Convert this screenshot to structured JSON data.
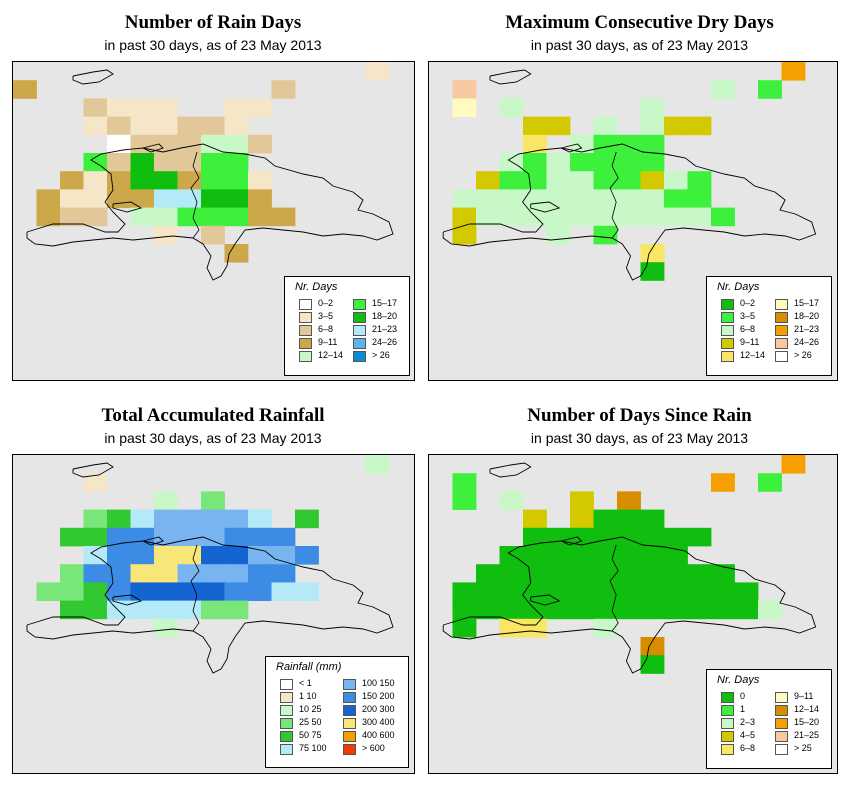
{
  "panels": [
    {
      "id": "rain-days",
      "title": "Number of Rain Days",
      "subtitle": "in past 30 days, as of  23 May 2013",
      "legend_title": "Nr. Days",
      "legend": [
        {
          "label": "0–2",
          "color": "#ffffff"
        },
        {
          "label": "3–5",
          "color": "#f5e6c8"
        },
        {
          "label": "6–8",
          "color": "#e2c898"
        },
        {
          "label": "9–11",
          "color": "#cda84a"
        },
        {
          "label": "12–14",
          "color": "#c8f7c8"
        },
        {
          "label": "15–17",
          "color": "#3cf03c"
        },
        {
          "label": "18–20",
          "color": "#0fbe0f"
        },
        {
          "label": "21–23",
          "color": "#b4eaf8"
        },
        {
          "label": "24–26",
          "color": "#5ab4f0"
        },
        {
          "label": "> 26",
          "color": "#0a8cd2"
        }
      ]
    },
    {
      "id": "dry-days",
      "title": "Maximum Consecutive Dry Days",
      "subtitle": "in past 30 days, as of  23 May 2013",
      "legend_title": "Nr. Days",
      "legend": [
        {
          "label": "0–2",
          "color": "#0fbe0f"
        },
        {
          "label": "3–5",
          "color": "#3cf03c"
        },
        {
          "label": "6–8",
          "color": "#c8f7c8"
        },
        {
          "label": "9–11",
          "color": "#d4c800"
        },
        {
          "label": "12–14",
          "color": "#f8e664"
        },
        {
          "label": "15–17",
          "color": "#fffac0"
        },
        {
          "label": "18–20",
          "color": "#d88c00"
        },
        {
          "label": "21–23",
          "color": "#f5a000"
        },
        {
          "label": "24–26",
          "color": "#f8c8a0"
        },
        {
          "label": "> 26",
          "color": "#ffffff"
        }
      ]
    },
    {
      "id": "rainfall",
      "title": "Total Accumulated Rainfall",
      "subtitle": "in past 30 days, as of  23 May 2013",
      "legend_title": "Rainfall (mm)",
      "legend": [
        {
          "label": "< 1",
          "color": "#ffffff"
        },
        {
          "label": "1   10",
          "color": "#f5e6c8"
        },
        {
          "label": "10   25",
          "color": "#c8f7c8"
        },
        {
          "label": "25   50",
          "color": "#78e678"
        },
        {
          "label": "50   75",
          "color": "#32c832"
        },
        {
          "label": "75   100",
          "color": "#b4eaf8"
        },
        {
          "label": "100   150",
          "color": "#78b4f0"
        },
        {
          "label": "150   200",
          "color": "#3c8ce6"
        },
        {
          "label": "200   300",
          "color": "#1464d2"
        },
        {
          "label": "300   400",
          "color": "#f8e678"
        },
        {
          "label": "400   600",
          "color": "#f5a000"
        },
        {
          "label": "> 600",
          "color": "#f03c00"
        }
      ]
    },
    {
      "id": "since-rain",
      "title": "Number of Days Since Rain",
      "subtitle": "in past 30 days, as of  23 May 2013",
      "legend_title": "Nr. Days",
      "legend": [
        {
          "label": "0",
          "color": "#0fbe0f"
        },
        {
          "label": "1",
          "color": "#3cf03c"
        },
        {
          "label": "2–3",
          "color": "#c8f7c8"
        },
        {
          "label": "4–5",
          "color": "#d4c800"
        },
        {
          "label": "6–8",
          "color": "#f8e664"
        },
        {
          "label": "9–11",
          "color": "#fffac0"
        },
        {
          "label": "12–14",
          "color": "#d88c00"
        },
        {
          "label": "15–20",
          "color": "#f5a000"
        },
        {
          "label": "21–25",
          "color": "#f8c8a0"
        },
        {
          "label": "> 25",
          "color": "#ffffff"
        }
      ]
    }
  ],
  "grid": {
    "cols": 17,
    "rows": 13,
    "maps": [
      [
        "...............1.",
        "3..........2.....",
        "...2111..11......",
        "...1211221.......",
        "....0222442......",
        "...5262255.......",
        "..313663551......",
        ".3113377663......",
        ".322.4455533.....",
        "......1.2........",
        ".........3.......",
        ".................",
        "................."
      ],
      [
        "...............7.",
        ".8..........2.1..",
        ".5.2.....2.......",
        "....33.2.233.....",
        "....4.2111.......",
        "...2121111.......",
        "..3112211321.....",
        ".22222222211.....",
        ".322222222221....",
        ".3...2.1.........",
        ".........4.......",
        ".........0.......",
        "................."
      ],
      [
        "...............2.",
        "...1.............",
        "......2.3........",
        "...34566665.4....",
        "..4477666777.....",
        "...5779988667....",
        "..3779966677.....",
        ".334788887755....",
        "..44555533.......",
        "......2..........",
        ".................",
        ".................",
        "................."
      ],
      [
        "...............7.",
        ".1..........7.1..",
        ".1.2..3.6........",
        "....3.3000.......",
        "....00000000.....",
        "...00000000......",
        "..00000000000....",
        ".0000000000000...",
        ".00000000000002..",
        ".0.44..2.........",
        ".........6.......",
        ".........0.......",
        "................."
      ]
    ]
  }
}
